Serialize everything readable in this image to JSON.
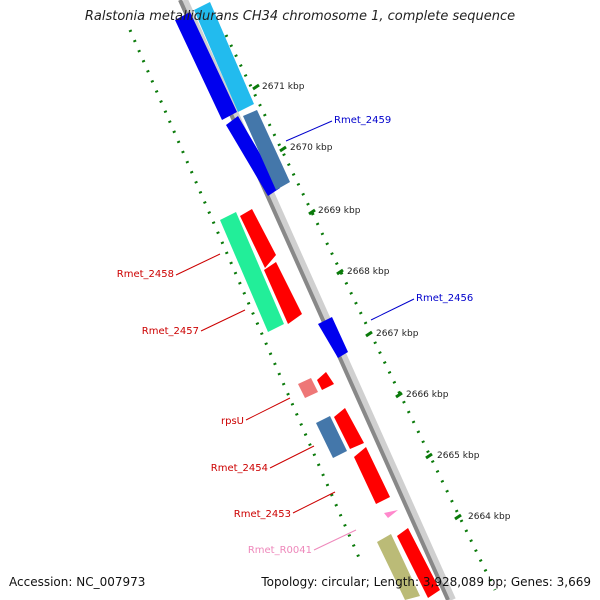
{
  "title": "Ralstonia metallidurans CH34 chromosome 1, complete sequence",
  "footer": {
    "accession": "Accession: NC_007973",
    "summary": "Topology: circular; Length: 3,928,089 bp; Genes: 3,669"
  },
  "scale": {
    "ticks": [
      "2671 kbp",
      "2670 kbp",
      "2669 kbp",
      "2668 kbp",
      "2667 kbp",
      "2666 kbp",
      "2665 kbp",
      "2664 kbp"
    ],
    "tick_color": "#0a7a0a"
  },
  "gene_labels": [
    {
      "text": "Rmet_2459",
      "color": "#0000cc"
    },
    {
      "text": "Rmet_2458",
      "color": "#cc0000"
    },
    {
      "text": "Rmet_2456",
      "color": "#0000cc"
    },
    {
      "text": "Rmet_2457",
      "color": "#cc0000"
    },
    {
      "text": "rpsU",
      "color": "#cc0000"
    },
    {
      "text": "Rmet_2454",
      "color": "#cc0000"
    },
    {
      "text": "Rmet_2453",
      "color": "#cc0000"
    },
    {
      "text": "Rmet_R0041",
      "color": "#ee88bb"
    }
  ],
  "feature_colors": {
    "forward_cds": "#ff0000",
    "reverse_cds": "#0000ee",
    "forward_orf": "#22ee99",
    "reverse_orf": "#5599dd",
    "reverse_orf_light": "#22bbee",
    "rna": "#ff88cc",
    "other": "#bbbb77",
    "backbone": "#888888"
  }
}
